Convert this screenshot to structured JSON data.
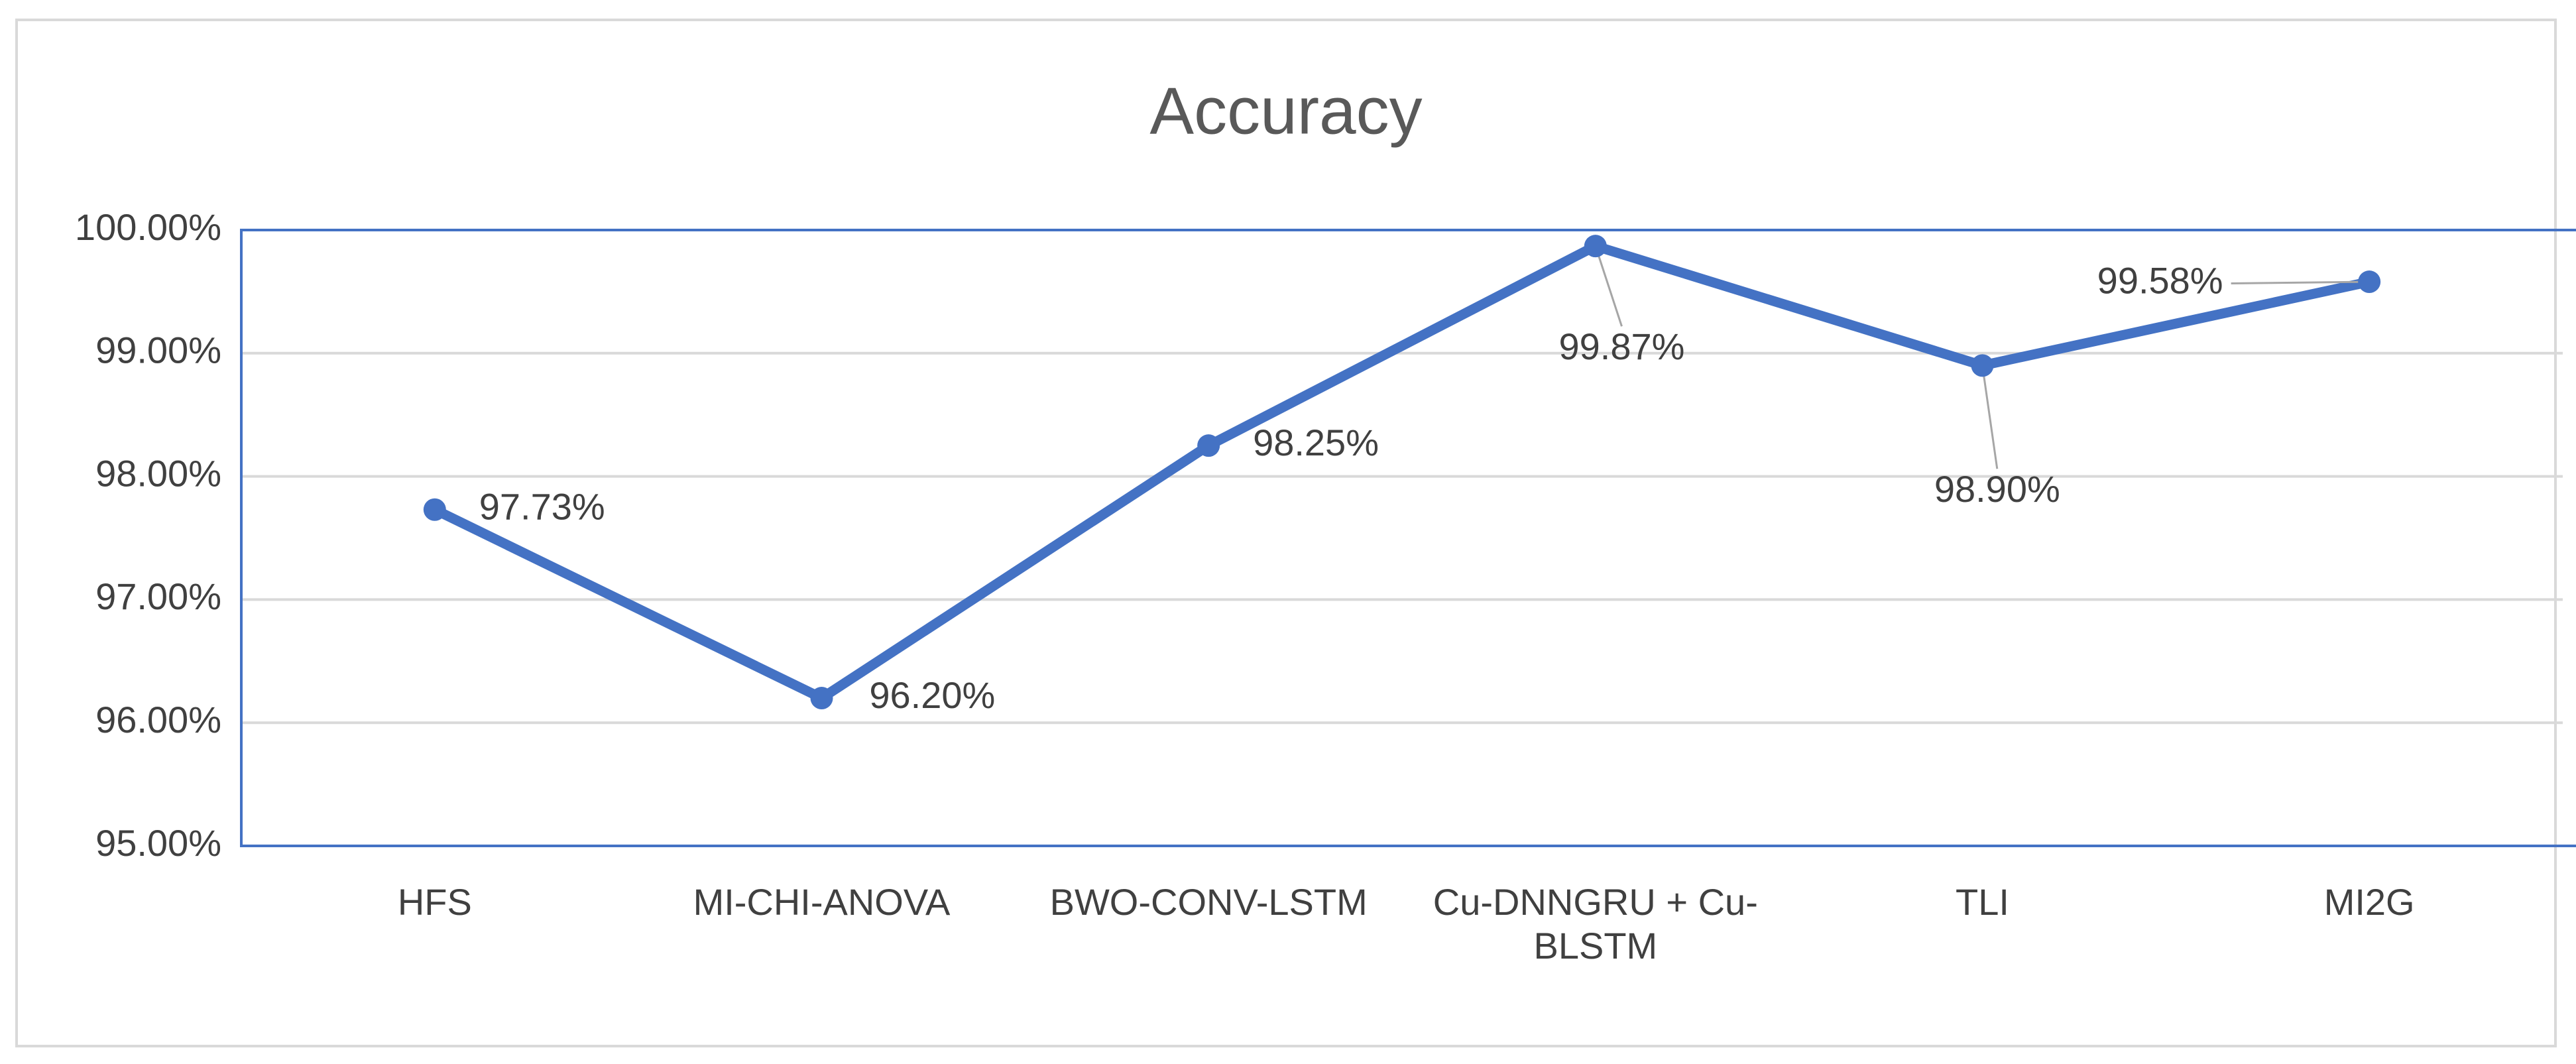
{
  "chart_data": {
    "type": "line",
    "title": "Accuracy",
    "categories": [
      "HFS",
      "MI-CHI-ANOVA",
      "BWO-CONV-LSTM",
      "Cu-DNNGRU + Cu-BLSTM",
      "TLI",
      "MI2G"
    ],
    "values": [
      97.73,
      96.2,
      98.25,
      99.87,
      98.9,
      99.58
    ],
    "value_labels": [
      "97.73%",
      "96.20%",
      "98.25%",
      "99.87%",
      "98.90%",
      "99.58%"
    ],
    "color": "#4472c4",
    "ylim": [
      95,
      100
    ],
    "yticks": [
      {
        "value": 95,
        "label": "95.00%"
      },
      {
        "value": 96,
        "label": "96.00%"
      },
      {
        "value": 97,
        "label": "97.00%"
      },
      {
        "value": 98,
        "label": "98.00%"
      },
      {
        "value": 99,
        "label": "99.00%"
      },
      {
        "value": 100,
        "label": "100.00%"
      }
    ],
    "grid": true
  }
}
